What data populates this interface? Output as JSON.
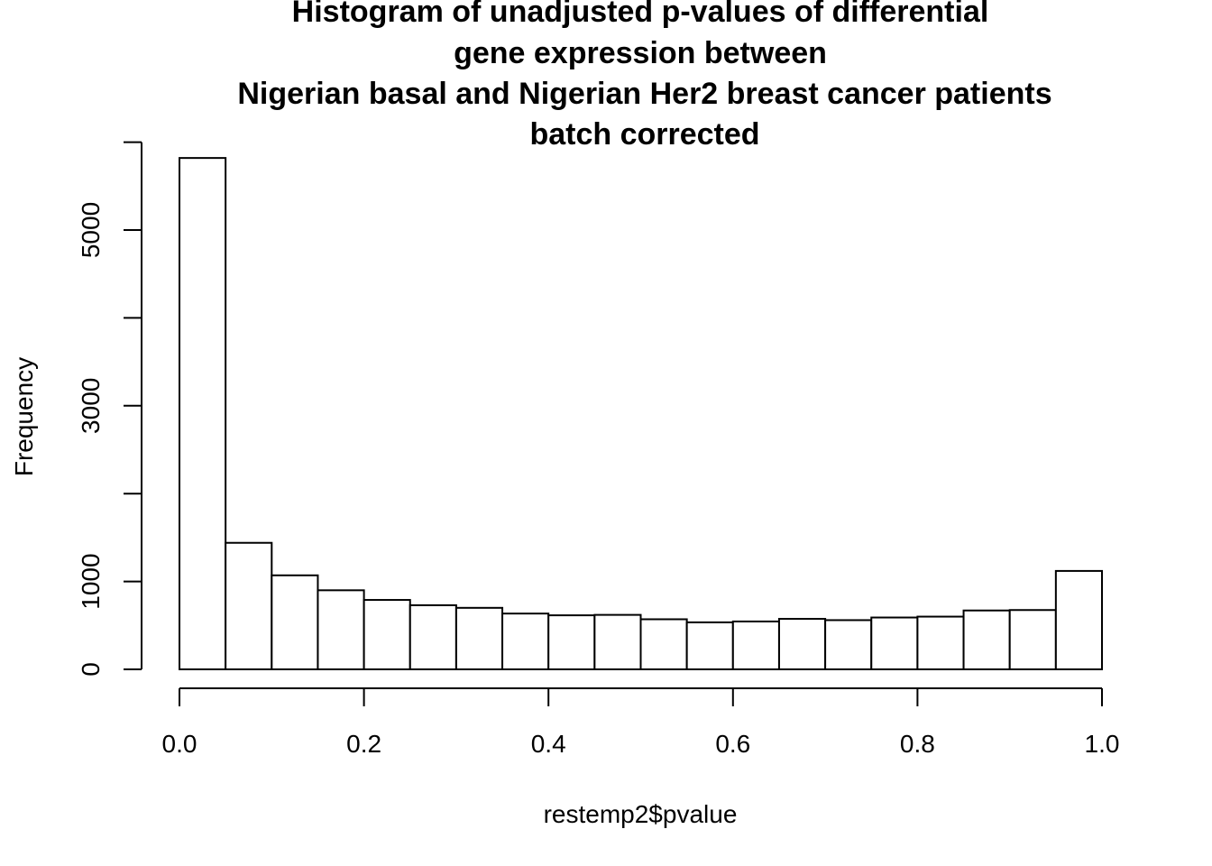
{
  "chart_data": {
    "type": "bar",
    "title_lines": [
      "Histogram of unadjusted p-values of differential",
      "gene expression between",
      "Nigerian basal and Nigerian Her2 breast cancer patients",
      "batch corrected"
    ],
    "xlabel": "restemp2$pvalue",
    "ylabel": "Frequency",
    "xlim": [
      0,
      1
    ],
    "ylim": [
      0,
      6000
    ],
    "x_ticks": [
      "0.0",
      "0.2",
      "0.4",
      "0.6",
      "0.8",
      "1.0"
    ],
    "y_ticks": [
      "0",
      "1000",
      "3000",
      "5000"
    ],
    "bins": [
      {
        "start": 0.0,
        "end": 0.05,
        "value": 5820
      },
      {
        "start": 0.05,
        "end": 0.1,
        "value": 1440
      },
      {
        "start": 0.1,
        "end": 0.15,
        "value": 1070
      },
      {
        "start": 0.15,
        "end": 0.2,
        "value": 900
      },
      {
        "start": 0.2,
        "end": 0.25,
        "value": 790
      },
      {
        "start": 0.25,
        "end": 0.3,
        "value": 730
      },
      {
        "start": 0.3,
        "end": 0.35,
        "value": 700
      },
      {
        "start": 0.35,
        "end": 0.4,
        "value": 635
      },
      {
        "start": 0.4,
        "end": 0.45,
        "value": 615
      },
      {
        "start": 0.45,
        "end": 0.5,
        "value": 620
      },
      {
        "start": 0.5,
        "end": 0.55,
        "value": 570
      },
      {
        "start": 0.55,
        "end": 0.6,
        "value": 535
      },
      {
        "start": 0.6,
        "end": 0.65,
        "value": 545
      },
      {
        "start": 0.65,
        "end": 0.7,
        "value": 575
      },
      {
        "start": 0.7,
        "end": 0.75,
        "value": 560
      },
      {
        "start": 0.75,
        "end": 0.8,
        "value": 590
      },
      {
        "start": 0.8,
        "end": 0.85,
        "value": 600
      },
      {
        "start": 0.85,
        "end": 0.9,
        "value": 670
      },
      {
        "start": 0.9,
        "end": 0.95,
        "value": 675
      },
      {
        "start": 0.95,
        "end": 1.0,
        "value": 1120
      }
    ],
    "grid": false,
    "legend": "none"
  }
}
